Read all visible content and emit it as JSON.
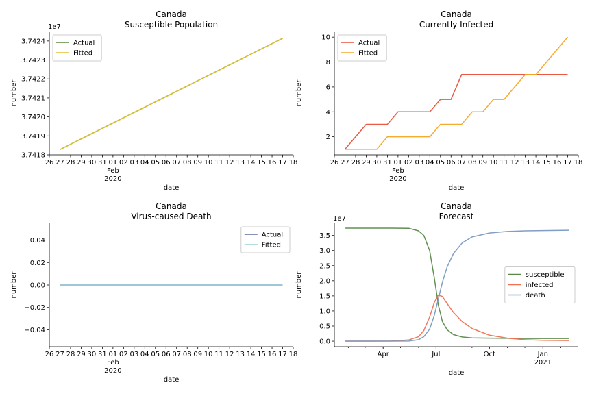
{
  "chart_data": [
    {
      "type": "line",
      "title": "Canada",
      "subtitle": "Susceptible Population",
      "xlabel": "date",
      "ylabel": "number",
      "multiplier_label": "1e7",
      "x_tick_labels": [
        "26",
        "27",
        "28",
        "29",
        "30",
        "31",
        "01",
        "02",
        "03",
        "04",
        "05",
        "06",
        "07",
        "08",
        "09",
        "10",
        "11",
        "12",
        "13",
        "14",
        "15",
        "16",
        "17",
        "18"
      ],
      "x_sub_label_1": "Feb",
      "x_sub_label_2": "2020",
      "xlim": [
        "2020-01-26",
        "2020-02-18"
      ],
      "ylim": [
        3.7418,
        3.74245
      ],
      "y_ticks": [
        3.7418,
        3.7419,
        3.742,
        3.7421,
        3.7422,
        3.7423,
        3.7424
      ],
      "y_tick_labels": [
        "3.7418",
        "3.7419",
        "3.7420",
        "3.7421",
        "3.7422",
        "3.7423",
        "3.7424"
      ],
      "legend_position": "top-left",
      "series": [
        {
          "name": "Actual",
          "color": "#5a8a3c",
          "x": [
            "2020-01-27",
            "2020-02-17"
          ],
          "y": [
            3.741828,
            3.742414
          ]
        },
        {
          "name": "Fitted",
          "color": "#e0c030",
          "x": [
            "2020-01-27",
            "2020-02-17"
          ],
          "y": [
            3.741828,
            3.742414
          ]
        }
      ]
    },
    {
      "type": "line",
      "title": "Canada",
      "subtitle": "Currently Infected",
      "xlabel": "date",
      "ylabel": "number",
      "x_tick_labels": [
        "26",
        "27",
        "28",
        "29",
        "30",
        "31",
        "01",
        "02",
        "03",
        "04",
        "05",
        "06",
        "07",
        "08",
        "09",
        "10",
        "11",
        "12",
        "13",
        "14",
        "15",
        "16",
        "17",
        "18"
      ],
      "x_sub_label_1": "Feb",
      "x_sub_label_2": "2020",
      "xlim": [
        "2020-01-26",
        "2020-02-18"
      ],
      "ylim": [
        0.55,
        10.45
      ],
      "y_ticks": [
        2,
        4,
        6,
        8,
        10
      ],
      "y_tick_labels": [
        "2",
        "4",
        "6",
        "8",
        "10"
      ],
      "legend_position": "top-left",
      "series": [
        {
          "name": "Actual",
          "color": "#e8503a",
          "x": [
            "2020-01-27",
            "2020-01-28",
            "2020-01-29",
            "2020-01-30",
            "2020-01-31",
            "2020-02-01",
            "2020-02-02",
            "2020-02-03",
            "2020-02-04",
            "2020-02-05",
            "2020-02-06",
            "2020-02-07",
            "2020-02-08",
            "2020-02-09",
            "2020-02-10",
            "2020-02-11",
            "2020-02-12",
            "2020-02-13",
            "2020-02-14",
            "2020-02-15",
            "2020-02-16",
            "2020-02-17"
          ],
          "y": [
            1,
            2,
            3,
            3,
            3,
            4,
            4,
            4,
            4,
            5,
            5,
            7,
            7,
            7,
            7,
            7,
            7,
            7,
            7,
            7,
            7,
            7
          ]
        },
        {
          "name": "Fitted",
          "color": "#f5a623",
          "x": [
            "2020-01-27",
            "2020-01-28",
            "2020-01-29",
            "2020-01-30",
            "2020-01-31",
            "2020-02-01",
            "2020-02-02",
            "2020-02-03",
            "2020-02-04",
            "2020-02-05",
            "2020-02-06",
            "2020-02-07",
            "2020-02-08",
            "2020-02-09",
            "2020-02-10",
            "2020-02-11",
            "2020-02-12",
            "2020-02-13",
            "2020-02-14",
            "2020-02-15",
            "2020-02-16",
            "2020-02-17"
          ],
          "y": [
            1,
            1,
            1,
            1,
            2,
            2,
            2,
            2,
            2,
            3,
            3,
            3,
            4,
            4,
            5,
            5,
            6,
            7,
            7,
            8,
            9,
            10
          ]
        }
      ]
    },
    {
      "type": "line",
      "title": "Canada",
      "subtitle": "Virus-caused Death",
      "xlabel": "date",
      "ylabel": "number",
      "x_tick_labels": [
        "26",
        "27",
        "28",
        "29",
        "30",
        "31",
        "01",
        "02",
        "03",
        "04",
        "05",
        "06",
        "07",
        "08",
        "09",
        "10",
        "11",
        "12",
        "13",
        "14",
        "15",
        "16",
        "17",
        "18"
      ],
      "x_sub_label_1": "Feb",
      "x_sub_label_2": "2020",
      "xlim": [
        "2020-01-26",
        "2020-02-18"
      ],
      "ylim": [
        -0.055,
        0.055
      ],
      "y_ticks": [
        -0.04,
        -0.02,
        0.0,
        0.02,
        0.04
      ],
      "y_tick_labels": [
        "−0.04",
        "−0.02",
        "0.00",
        "0.02",
        "0.04"
      ],
      "legend_position": "top-right",
      "series": [
        {
          "name": "Actual",
          "color": "#5b6f9e",
          "x": [
            "2020-01-27",
            "2020-02-17"
          ],
          "y": [
            0,
            0
          ]
        },
        {
          "name": "Fitted",
          "color": "#9ad0dc",
          "x": [
            "2020-01-27",
            "2020-02-17"
          ],
          "y": [
            0,
            0
          ]
        }
      ]
    },
    {
      "type": "line",
      "title": "Canada",
      "subtitle": "Forecast",
      "xlabel": "date",
      "ylabel": "number",
      "multiplier_label": "1e7",
      "xlim": [
        "2020-01-08",
        "2021-03-03"
      ],
      "x_ticks": [
        {
          "date": "2020-04-01",
          "label": "Apr",
          "sub": ""
        },
        {
          "date": "2020-07-01",
          "label": "Jul",
          "sub": ""
        },
        {
          "date": "2020-10-01",
          "label": "Oct",
          "sub": ""
        },
        {
          "date": "2021-01-01",
          "label": "Jan",
          "sub": "2021"
        }
      ],
      "ylim": [
        -0.18,
        3.9
      ],
      "y_ticks": [
        0,
        0.5,
        1.0,
        1.5,
        2.0,
        2.5,
        3.0,
        3.5
      ],
      "y_tick_labels": [
        "0.0",
        "0.5",
        "1.0",
        "1.5",
        "2.0",
        "2.5",
        "3.0",
        "3.5"
      ],
      "legend_position": "center-right",
      "series": [
        {
          "name": "susceptible",
          "color": "#5a8a4a",
          "x": [
            "2020-01-27",
            "2020-02-15",
            "2020-03-15",
            "2020-04-15",
            "2020-05-15",
            "2020-06-01",
            "2020-06-10",
            "2020-06-20",
            "2020-06-28",
            "2020-07-05",
            "2020-07-12",
            "2020-07-20",
            "2020-07-31",
            "2020-08-15",
            "2020-09-01",
            "2020-10-01",
            "2020-11-01",
            "2020-12-01",
            "2021-01-01",
            "2021-02-15"
          ],
          "y": [
            3.742,
            3.742,
            3.742,
            3.741,
            3.735,
            3.65,
            3.5,
            3.0,
            2.1,
            1.2,
            0.65,
            0.38,
            0.22,
            0.14,
            0.11,
            0.1,
            0.095,
            0.09,
            0.09,
            0.09
          ]
        },
        {
          "name": "infected",
          "color": "#f07050",
          "x": [
            "2020-01-27",
            "2020-03-15",
            "2020-04-15",
            "2020-05-15",
            "2020-06-01",
            "2020-06-10",
            "2020-06-20",
            "2020-06-28",
            "2020-07-05",
            "2020-07-12",
            "2020-07-20",
            "2020-07-31",
            "2020-08-15",
            "2020-09-01",
            "2020-10-01",
            "2020-11-01",
            "2020-12-01",
            "2021-01-01",
            "2021-02-15"
          ],
          "y": [
            0,
            0,
            0.005,
            0.04,
            0.15,
            0.35,
            0.8,
            1.28,
            1.53,
            1.48,
            1.25,
            0.95,
            0.65,
            0.42,
            0.2,
            0.1,
            0.05,
            0.03,
            0.02
          ]
        },
        {
          "name": "death",
          "color": "#7a9ac0",
          "x": [
            "2020-01-27",
            "2020-04-15",
            "2020-05-15",
            "2020-06-01",
            "2020-06-10",
            "2020-06-20",
            "2020-06-28",
            "2020-07-05",
            "2020-07-12",
            "2020-07-20",
            "2020-07-31",
            "2020-08-15",
            "2020-09-01",
            "2020-10-01",
            "2020-11-01",
            "2020-12-01",
            "2021-01-01",
            "2021-02-15"
          ],
          "y": [
            0,
            0,
            0.005,
            0.05,
            0.15,
            0.4,
            0.85,
            1.4,
            1.95,
            2.45,
            2.9,
            3.25,
            3.45,
            3.58,
            3.63,
            3.65,
            3.66,
            3.67
          ]
        }
      ]
    }
  ]
}
